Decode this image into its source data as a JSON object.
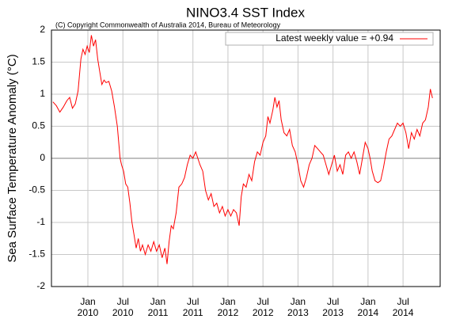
{
  "chart_data": {
    "type": "line",
    "title": "NINO3.4 SST Index",
    "subtitle": "(C) Copyright Commonwealth of Australia 2014, Bureau of Meteorology",
    "y_label": "Sea Surface Temperature Anomaly (°C)",
    "xlim": [
      2009.48,
      2015.03
    ],
    "ylim": [
      -2,
      2
    ],
    "yticks": [
      2,
      1.5,
      1,
      0.5,
      0,
      -0.5,
      -1,
      -1.5,
      -2
    ],
    "xticks": [
      {
        "value": 2010.0,
        "label": "Jan 2010"
      },
      {
        "value": 2010.5,
        "label": "Jul 2010"
      },
      {
        "value": 2011.0,
        "label": "Jan 2011"
      },
      {
        "value": 2011.5,
        "label": "Jul 2011"
      },
      {
        "value": 2012.0,
        "label": "Jan 2012"
      },
      {
        "value": 2012.5,
        "label": "Jul 2012"
      },
      {
        "value": 2013.0,
        "label": "Jan 2013"
      },
      {
        "value": 2013.5,
        "label": "Jul 2013"
      },
      {
        "value": 2014.0,
        "label": "Jan 2014"
      },
      {
        "value": 2014.5,
        "label": "Jul 2014"
      }
    ],
    "grid": true,
    "legend": "upper right",
    "x": [
      2009.5,
      2009.55,
      2009.6,
      2009.65,
      2009.7,
      2009.74,
      2009.78,
      2009.82,
      2009.86,
      2009.9,
      2009.93,
      2009.96,
      2009.99,
      2010.02,
      2010.05,
      2010.08,
      2010.11,
      2010.14,
      2010.17,
      2010.2,
      2010.23,
      2010.26,
      2010.3,
      2010.34,
      2010.38,
      2010.42,
      2010.46,
      2010.48,
      2010.51,
      2010.54,
      2010.57,
      2010.6,
      2010.63,
      2010.66,
      2010.69,
      2010.72,
      2010.75,
      2010.78,
      2010.82,
      2010.86,
      2010.9,
      2010.94,
      2010.98,
      2011.02,
      2011.06,
      2011.1,
      2011.13,
      2011.16,
      2011.19,
      2011.22,
      2011.26,
      2011.3,
      2011.34,
      2011.38,
      2011.42,
      2011.46,
      2011.5,
      2011.54,
      2011.57,
      2011.6,
      2011.64,
      2011.68,
      2011.72,
      2011.76,
      2011.8,
      2011.84,
      2011.88,
      2011.92,
      2011.96,
      2012.0,
      2012.04,
      2012.08,
      2012.12,
      2012.16,
      2012.19,
      2012.22,
      2012.26,
      2012.3,
      2012.34,
      2012.38,
      2012.42,
      2012.46,
      2012.5,
      2012.54,
      2012.57,
      2012.6,
      2012.64,
      2012.67,
      2012.7,
      2012.73,
      2012.76,
      2012.8,
      2012.84,
      2012.88,
      2012.92,
      2012.96,
      2013.0,
      2013.04,
      2013.08,
      2013.12,
      2013.16,
      2013.2,
      2013.24,
      2013.28,
      2013.32,
      2013.36,
      2013.4,
      2013.44,
      2013.48,
      2013.52,
      2013.56,
      2013.6,
      2013.64,
      2013.68,
      2013.72,
      2013.76,
      2013.8,
      2013.84,
      2013.88,
      2013.92,
      2013.96,
      2014.0,
      2014.03,
      2014.06,
      2014.1,
      2014.14,
      2014.18,
      2014.22,
      2014.26,
      2014.3,
      2014.34,
      2014.38,
      2014.42,
      2014.46,
      2014.5,
      2014.54,
      2014.58,
      2014.62,
      2014.66,
      2014.7,
      2014.74,
      2014.78,
      2014.82,
      2014.86,
      2014.89,
      2014.92
    ],
    "series": [
      {
        "name": "Latest weekly value = +0.94",
        "color": "#ff0000",
        "values": [
          0.88,
          0.82,
          0.72,
          0.8,
          0.9,
          0.95,
          0.78,
          0.85,
          1.05,
          1.55,
          1.7,
          1.62,
          1.75,
          1.65,
          1.92,
          1.75,
          1.85,
          1.55,
          1.35,
          1.15,
          1.22,
          1.18,
          1.2,
          1.05,
          0.8,
          0.5,
          0.0,
          -0.1,
          -0.2,
          -0.4,
          -0.45,
          -0.7,
          -1.0,
          -1.2,
          -1.4,
          -1.25,
          -1.45,
          -1.35,
          -1.5,
          -1.35,
          -1.45,
          -1.3,
          -1.45,
          -1.35,
          -1.55,
          -1.4,
          -1.65,
          -1.3,
          -1.05,
          -1.1,
          -0.85,
          -0.45,
          -0.4,
          -0.3,
          -0.1,
          0.05,
          0.0,
          0.1,
          0.0,
          -0.1,
          -0.2,
          -0.5,
          -0.65,
          -0.55,
          -0.75,
          -0.7,
          -0.85,
          -0.75,
          -0.9,
          -0.8,
          -0.9,
          -0.8,
          -0.85,
          -1.05,
          -0.6,
          -0.4,
          -0.45,
          -0.25,
          -0.35,
          -0.05,
          0.1,
          0.05,
          0.25,
          0.35,
          0.65,
          0.55,
          0.75,
          0.95,
          0.8,
          0.9,
          0.6,
          0.4,
          0.35,
          0.45,
          0.2,
          0.1,
          -0.1,
          -0.35,
          -0.45,
          -0.3,
          -0.1,
          0.0,
          0.2,
          0.15,
          0.1,
          0.05,
          -0.1,
          -0.25,
          -0.1,
          0.05,
          -0.2,
          -0.1,
          -0.25,
          0.05,
          0.1,
          0.0,
          0.1,
          -0.05,
          -0.25,
          0.0,
          0.25,
          0.15,
          0.0,
          -0.2,
          -0.35,
          -0.38,
          -0.35,
          -0.15,
          0.1,
          0.3,
          0.35,
          0.45,
          0.55,
          0.5,
          0.55,
          0.4,
          0.15,
          0.4,
          0.3,
          0.45,
          0.35,
          0.55,
          0.6,
          0.8,
          1.08,
          0.94
        ]
      }
    ]
  }
}
